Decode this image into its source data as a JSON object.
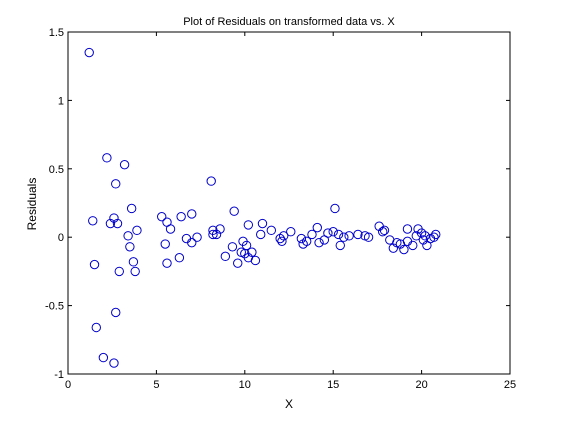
{
  "chart_data": {
    "type": "scatter",
    "title": "Plot of Residuals on transformed data vs. X",
    "xlabel": "X",
    "ylabel": "Residuals",
    "xlim": [
      0,
      25
    ],
    "ylim": [
      -1,
      1.5
    ],
    "xticks": [
      0,
      5,
      10,
      15,
      20,
      25
    ],
    "xtick_labels": [
      "0",
      "5",
      "10",
      "15",
      "20",
      "25"
    ],
    "yticks": [
      -1,
      -0.5,
      0,
      0.5,
      1,
      1.5
    ],
    "ytick_labels": [
      "-1",
      "-0.5",
      "0",
      "0.5",
      "1",
      "1.5"
    ],
    "grid": false,
    "marker": "open-circle",
    "marker_color": "#0000cc",
    "series": [
      {
        "points": [
          [
            1.2,
            1.35
          ],
          [
            1.4,
            0.12
          ],
          [
            1.5,
            -0.2
          ],
          [
            1.6,
            -0.66
          ],
          [
            2.0,
            -0.88
          ],
          [
            2.2,
            0.58
          ],
          [
            2.4,
            0.1
          ],
          [
            2.6,
            0.14
          ],
          [
            2.6,
            -0.92
          ],
          [
            2.7,
            0.39
          ],
          [
            2.7,
            -0.55
          ],
          [
            2.8,
            0.1
          ],
          [
            2.9,
            -0.25
          ],
          [
            3.2,
            0.53
          ],
          [
            3.4,
            0.01
          ],
          [
            3.5,
            -0.07
          ],
          [
            3.6,
            0.21
          ],
          [
            3.7,
            -0.18
          ],
          [
            3.8,
            -0.25
          ],
          [
            3.9,
            0.05
          ],
          [
            5.3,
            0.15
          ],
          [
            5.5,
            -0.05
          ],
          [
            5.6,
            0.11
          ],
          [
            5.6,
            -0.19
          ],
          [
            5.8,
            0.06
          ],
          [
            6.3,
            -0.15
          ],
          [
            6.4,
            0.15
          ],
          [
            6.7,
            -0.01
          ],
          [
            7.0,
            0.17
          ],
          [
            7.0,
            -0.04
          ],
          [
            7.3,
            0.0
          ],
          [
            8.1,
            0.41
          ],
          [
            8.2,
            0.05
          ],
          [
            8.2,
            0.02
          ],
          [
            8.4,
            0.02
          ],
          [
            8.6,
            0.06
          ],
          [
            8.9,
            -0.14
          ],
          [
            9.3,
            -0.07
          ],
          [
            9.4,
            0.19
          ],
          [
            9.6,
            -0.19
          ],
          [
            9.8,
            -0.11
          ],
          [
            9.9,
            -0.03
          ],
          [
            10.0,
            -0.12
          ],
          [
            10.1,
            -0.06
          ],
          [
            10.2,
            -0.15
          ],
          [
            10.2,
            0.09
          ],
          [
            10.4,
            -0.11
          ],
          [
            10.6,
            -0.17
          ],
          [
            10.9,
            0.02
          ],
          [
            11.0,
            0.1
          ],
          [
            11.5,
            0.05
          ],
          [
            12.0,
            -0.01
          ],
          [
            12.1,
            -0.03
          ],
          [
            12.2,
            0.01
          ],
          [
            12.6,
            0.04
          ],
          [
            13.2,
            -0.01
          ],
          [
            13.3,
            -0.05
          ],
          [
            13.5,
            -0.03
          ],
          [
            13.8,
            0.02
          ],
          [
            14.1,
            0.07
          ],
          [
            14.2,
            -0.04
          ],
          [
            14.5,
            -0.02
          ],
          [
            14.7,
            0.03
          ],
          [
            15.0,
            0.04
          ],
          [
            15.1,
            0.21
          ],
          [
            15.3,
            0.02
          ],
          [
            15.4,
            -0.06
          ],
          [
            15.6,
            0.0
          ],
          [
            15.9,
            0.01
          ],
          [
            16.4,
            0.02
          ],
          [
            16.8,
            0.01
          ],
          [
            17.0,
            0.0
          ],
          [
            17.6,
            0.08
          ],
          [
            17.8,
            0.04
          ],
          [
            17.9,
            0.05
          ],
          [
            18.2,
            -0.02
          ],
          [
            18.4,
            -0.08
          ],
          [
            18.6,
            -0.04
          ],
          [
            18.8,
            -0.05
          ],
          [
            19.0,
            -0.09
          ],
          [
            19.2,
            -0.03
          ],
          [
            19.2,
            0.06
          ],
          [
            19.5,
            -0.06
          ],
          [
            19.7,
            0.01
          ],
          [
            19.8,
            0.06
          ],
          [
            20.0,
            0.03
          ],
          [
            20.1,
            -0.02
          ],
          [
            20.2,
            0.01
          ],
          [
            20.3,
            -0.06
          ],
          [
            20.5,
            -0.01
          ],
          [
            20.7,
            0.0
          ],
          [
            20.8,
            0.02
          ]
        ]
      }
    ]
  }
}
